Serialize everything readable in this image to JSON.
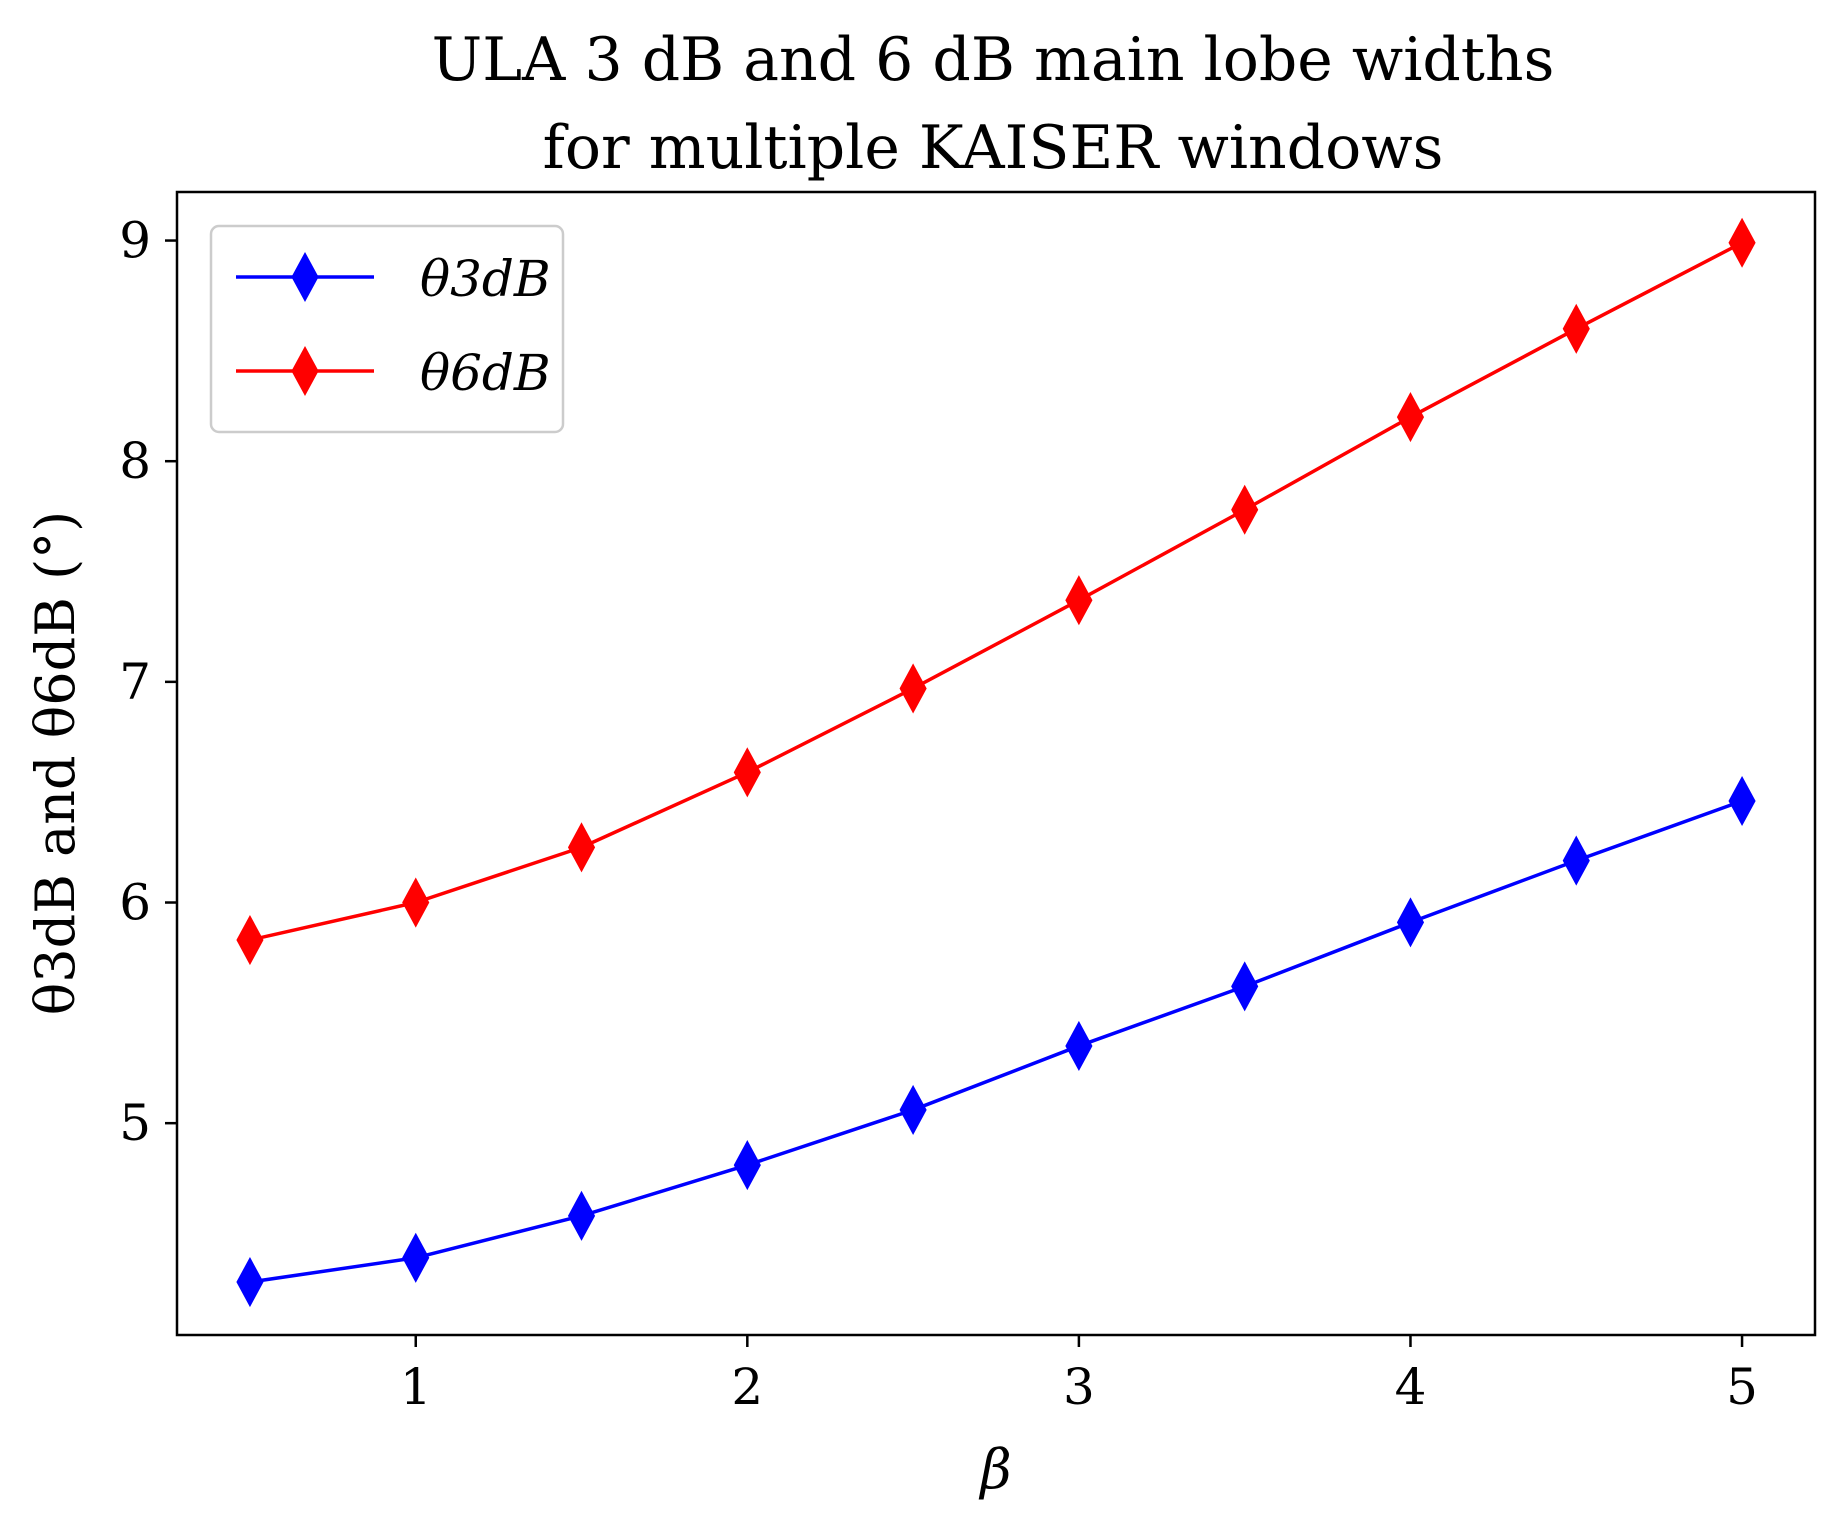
{
  "chart_data": {
    "type": "line",
    "title": [
      "ULA 3 dB and 6 dB main lobe widths",
      "for multiple KAISER windows"
    ],
    "xlabel": "β",
    "ylabel": "θ3dB and θ6dB (°)",
    "x": [
      0.5,
      1.0,
      1.5,
      2.0,
      2.5,
      3.0,
      3.5,
      4.0,
      4.5,
      5.0
    ],
    "xlim": [
      0.28,
      5.22
    ],
    "ylim": [
      4.04,
      9.22
    ],
    "xticks": [
      1,
      2,
      3,
      4,
      5
    ],
    "yticks": [
      5,
      6,
      7,
      8,
      9
    ],
    "grid": false,
    "legend_position": "top-left",
    "marker": "thin-diamond",
    "series": [
      {
        "name": "θ3dB",
        "color": "#0000ff",
        "values": [
          4.28,
          4.39,
          4.58,
          4.81,
          5.06,
          5.35,
          5.62,
          5.91,
          6.19,
          6.46
        ]
      },
      {
        "name": "θ6dB",
        "color": "#ff0000",
        "values": [
          5.83,
          6.0,
          6.25,
          6.59,
          6.97,
          7.37,
          7.78,
          8.2,
          8.6,
          8.99
        ]
      }
    ]
  }
}
